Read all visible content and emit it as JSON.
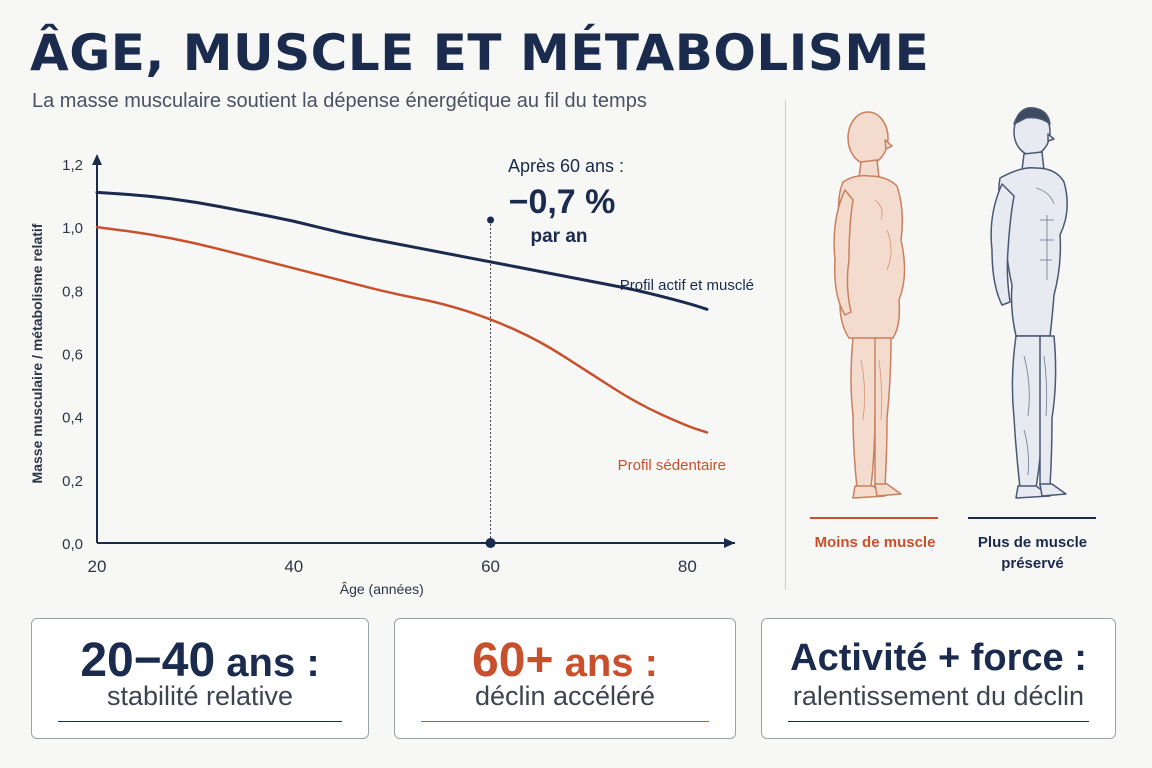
{
  "header": {
    "title": "ÂGE, MUSCLE ET MÉTABOLISME",
    "subtitle": "La masse musculaire soutient la dépense énergétique au fil du temps"
  },
  "annotation": {
    "line1": "Après 60 ans :",
    "value": "−0,7 %",
    "line3": "par an"
  },
  "figures": {
    "left_label": "Moins de muscle",
    "right_label_line1": "Plus de muscle",
    "right_label_line2": "préservé"
  },
  "cards": [
    {
      "main_value": "20−40",
      "main_suffix": "ans :",
      "sub": "stabilité relative",
      "accent": "#1a2b4d"
    },
    {
      "main_value": "60+",
      "main_suffix": "ans :",
      "sub": "déclin accéléré",
      "accent": "#c8502c"
    },
    {
      "main_value": "Activité + force :",
      "main_suffix": "",
      "sub": "ralentissement du déclin",
      "accent": "#1a2b4d"
    }
  ],
  "colors": {
    "navy": "#1a2b4d",
    "orange": "#c8502c"
  },
  "chart_data": {
    "type": "line",
    "xlabel": "Âge (années)",
    "ylabel": "Masse musculaire / métabolisme relatif",
    "xlim": [
      20,
      82
    ],
    "ylim": [
      0,
      1.2
    ],
    "x_ticks": [
      {
        "value": 20,
        "label": "20"
      },
      {
        "value": 40,
        "label": "40"
      },
      {
        "value": 60,
        "label": "60"
      },
      {
        "value": 80,
        "label": "80"
      }
    ],
    "y_ticks": [
      {
        "value": 0,
        "label": "0,0"
      },
      {
        "value": 0.2,
        "label": "0,2"
      },
      {
        "value": 0.4,
        "label": "0,4"
      },
      {
        "value": 0.6,
        "label": "0,6"
      },
      {
        "value": 0.8,
        "label": "0,8"
      },
      {
        "value": 1.0,
        "label": "1,0"
      },
      {
        "value": 1.2,
        "label": "1,2"
      }
    ],
    "reference_x": 60,
    "series": [
      {
        "name": "Profil actif et musclé",
        "color": "#1a2b4d",
        "x": [
          20,
          25,
          30,
          35,
          40,
          45,
          50,
          55,
          60,
          65,
          70,
          75,
          80,
          82
        ],
        "y": [
          1.11,
          1.1,
          1.08,
          1.05,
          1.02,
          0.98,
          0.95,
          0.92,
          0.89,
          0.86,
          0.83,
          0.8,
          0.76,
          0.74
        ]
      },
      {
        "name": "Profil sédentaire",
        "color": "#c8502c",
        "x": [
          20,
          25,
          30,
          35,
          40,
          45,
          50,
          55,
          60,
          65,
          70,
          75,
          80,
          82
        ],
        "y": [
          1.0,
          0.98,
          0.95,
          0.91,
          0.87,
          0.83,
          0.79,
          0.76,
          0.71,
          0.64,
          0.54,
          0.44,
          0.37,
          0.35
        ]
      }
    ]
  }
}
